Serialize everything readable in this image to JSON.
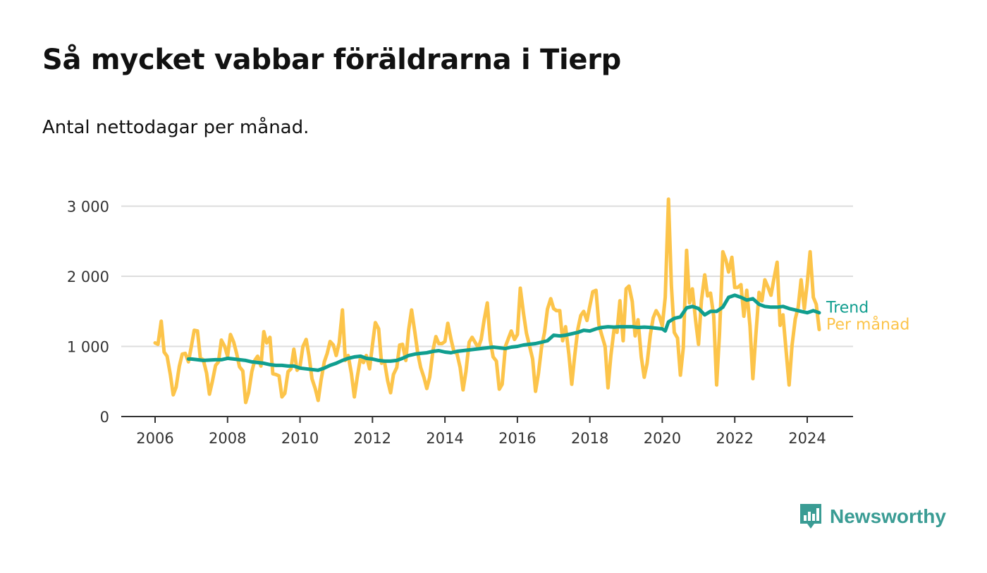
{
  "chart_data": {
    "type": "line",
    "title": "Så mycket vabbar föräldrarna i Tierp",
    "subtitle": "Antal nettodagar per månad.",
    "xlabel": "",
    "ylabel": "",
    "ylim": [
      0,
      3200
    ],
    "y_ticks": [
      0,
      1000,
      2000,
      3000
    ],
    "y_tick_labels": [
      "0",
      "1 000",
      "2 000",
      "3 000"
    ],
    "x_ticks": [
      2006,
      2008,
      2010,
      2012,
      2014,
      2016,
      2018,
      2020,
      2022,
      2024
    ],
    "x_tick_labels": [
      "2006",
      "2008",
      "2010",
      "2012",
      "2014",
      "2016",
      "2018",
      "2020",
      "2022",
      "2024"
    ],
    "xlim": [
      2005,
      2025.3
    ],
    "grid": true,
    "legend": "right-inline",
    "series": [
      {
        "name": "Per månad",
        "color": "#fcc44a",
        "x": [
          2006.0,
          2006.08,
          2006.17,
          2006.25,
          2006.33,
          2006.42,
          2006.5,
          2006.58,
          2006.67,
          2006.75,
          2006.83,
          2006.92,
          2007.0,
          2007.08,
          2007.17,
          2007.25,
          2007.33,
          2007.42,
          2007.5,
          2007.58,
          2007.67,
          2007.75,
          2007.83,
          2007.92,
          2008.0,
          2008.08,
          2008.17,
          2008.25,
          2008.33,
          2008.42,
          2008.5,
          2008.58,
          2008.67,
          2008.75,
          2008.83,
          2008.92,
          2009.0,
          2009.08,
          2009.17,
          2009.25,
          2009.33,
          2009.42,
          2009.5,
          2009.58,
          2009.67,
          2009.75,
          2009.83,
          2009.92,
          2010.0,
          2010.08,
          2010.17,
          2010.25,
          2010.33,
          2010.42,
          2010.5,
          2010.58,
          2010.67,
          2010.75,
          2010.83,
          2010.92,
          2011.0,
          2011.08,
          2011.17,
          2011.25,
          2011.33,
          2011.42,
          2011.5,
          2011.58,
          2011.67,
          2011.75,
          2011.83,
          2011.92,
          2012.0,
          2012.08,
          2012.17,
          2012.25,
          2012.33,
          2012.42,
          2012.5,
          2012.58,
          2012.67,
          2012.75,
          2012.83,
          2012.92,
          2013.0,
          2013.08,
          2013.17,
          2013.25,
          2013.33,
          2013.42,
          2013.5,
          2013.58,
          2013.67,
          2013.75,
          2013.83,
          2013.92,
          2014.0,
          2014.08,
          2014.17,
          2014.25,
          2014.33,
          2014.42,
          2014.5,
          2014.58,
          2014.67,
          2014.75,
          2014.83,
          2014.92,
          2015.0,
          2015.08,
          2015.17,
          2015.25,
          2015.33,
          2015.42,
          2015.5,
          2015.58,
          2015.67,
          2015.75,
          2015.83,
          2015.92,
          2016.0,
          2016.08,
          2016.17,
          2016.25,
          2016.33,
          2016.42,
          2016.5,
          2016.58,
          2016.67,
          2016.75,
          2016.83,
          2016.92,
          2017.0,
          2017.08,
          2017.17,
          2017.25,
          2017.33,
          2017.42,
          2017.5,
          2017.58,
          2017.67,
          2017.75,
          2017.83,
          2017.92,
          2018.0,
          2018.08,
          2018.17,
          2018.25,
          2018.33,
          2018.42,
          2018.5,
          2018.58,
          2018.67,
          2018.75,
          2018.83,
          2018.92,
          2019.0,
          2019.08,
          2019.17,
          2019.25,
          2019.33,
          2019.42,
          2019.5,
          2019.58,
          2019.67,
          2019.75,
          2019.83,
          2019.92,
          2020.0,
          2020.08,
          2020.17,
          2020.25,
          2020.33,
          2020.42,
          2020.5,
          2020.58,
          2020.67,
          2020.75,
          2020.83,
          2020.92,
          2021.0,
          2021.08,
          2021.17,
          2021.25,
          2021.33,
          2021.42,
          2021.5,
          2021.58,
          2021.67,
          2021.75,
          2021.83,
          2021.92,
          2022.0,
          2022.08,
          2022.17,
          2022.25,
          2022.33,
          2022.42,
          2022.5,
          2022.58,
          2022.67,
          2022.75,
          2022.83,
          2022.92,
          2023.0,
          2023.08,
          2023.17,
          2023.25,
          2023.33,
          2023.42,
          2023.5,
          2023.58,
          2023.67,
          2023.75,
          2023.83,
          2023.92,
          2024.0,
          2024.08,
          2024.17,
          2024.25,
          2024.33
        ],
        "values": [
          1050,
          1030,
          1360,
          920,
          860,
          600,
          310,
          420,
          720,
          890,
          900,
          780,
          1000,
          1230,
          1220,
          830,
          810,
          620,
          320,
          500,
          730,
          780,
          1090,
          1000,
          860,
          1170,
          1060,
          900,
          710,
          650,
          200,
          340,
          640,
          800,
          860,
          720,
          1210,
          1050,
          1130,
          610,
          600,
          580,
          280,
          330,
          640,
          680,
          960,
          660,
          720,
          1000,
          1100,
          860,
          540,
          400,
          230,
          520,
          780,
          900,
          1070,
          1020,
          870,
          1050,
          1520,
          800,
          870,
          610,
          280,
          560,
          840,
          770,
          870,
          680,
          1020,
          1340,
          1250,
          760,
          790,
          510,
          340,
          600,
          700,
          1020,
          1030,
          800,
          1240,
          1520,
          1200,
          900,
          700,
          560,
          400,
          560,
          950,
          1140,
          1040,
          1040,
          1070,
          1330,
          1100,
          920,
          900,
          700,
          380,
          640,
          1060,
          1130,
          1060,
          980,
          1100,
          1370,
          1620,
          1090,
          850,
          790,
          390,
          460,
          1000,
          1110,
          1220,
          1100,
          1170,
          1830,
          1470,
          1190,
          1020,
          820,
          360,
          610,
          1000,
          1200,
          1530,
          1680,
          1540,
          1510,
          1510,
          1080,
          1280,
          890,
          460,
          860,
          1250,
          1440,
          1500,
          1370,
          1580,
          1780,
          1800,
          1310,
          1160,
          1000,
          410,
          870,
          1250,
          1200,
          1650,
          1080,
          1820,
          1860,
          1640,
          1150,
          1380,
          850,
          560,
          760,
          1170,
          1410,
          1510,
          1430,
          1290,
          1700,
          3100,
          1870,
          1200,
          1120,
          590,
          980,
          2370,
          1620,
          1820,
          1370,
          1030,
          1650,
          2020,
          1720,
          1760,
          1430,
          450,
          1190,
          2350,
          2240,
          2060,
          2270,
          1840,
          1840,
          1880,
          1430,
          1800,
          1290,
          540,
          1150,
          1770,
          1650,
          1950,
          1840,
          1730,
          1960,
          2200,
          1300,
          1450,
          920,
          450,
          1010,
          1390,
          1560,
          1950,
          1540,
          1900,
          2350,
          1700,
          1600,
          1240
        ]
      },
      {
        "name": "Trend",
        "color": "#109e8f",
        "x": [
          2006.92,
          2007.0,
          2007.17,
          2007.33,
          2007.5,
          2007.67,
          2007.83,
          2008.0,
          2008.17,
          2008.33,
          2008.5,
          2008.67,
          2008.83,
          2009.0,
          2009.17,
          2009.33,
          2009.5,
          2009.67,
          2009.83,
          2010.0,
          2010.17,
          2010.33,
          2010.5,
          2010.67,
          2010.83,
          2011.0,
          2011.17,
          2011.33,
          2011.5,
          2011.67,
          2011.83,
          2012.0,
          2012.17,
          2012.33,
          2012.5,
          2012.67,
          2012.83,
          2013.0,
          2013.17,
          2013.33,
          2013.5,
          2013.67,
          2013.83,
          2014.0,
          2014.17,
          2014.33,
          2014.5,
          2014.67,
          2014.83,
          2015.0,
          2015.17,
          2015.33,
          2015.5,
          2015.67,
          2015.83,
          2016.0,
          2016.17,
          2016.33,
          2016.5,
          2016.67,
          2016.83,
          2017.0,
          2017.17,
          2017.33,
          2017.5,
          2017.67,
          2017.83,
          2018.0,
          2018.17,
          2018.33,
          2018.5,
          2018.67,
          2018.83,
          2019.0,
          2019.17,
          2019.33,
          2019.5,
          2019.67,
          2019.83,
          2020.0,
          2020.08,
          2020.17,
          2020.33,
          2020.5,
          2020.67,
          2020.83,
          2021.0,
          2021.17,
          2021.33,
          2021.5,
          2021.67,
          2021.83,
          2022.0,
          2022.17,
          2022.33,
          2022.5,
          2022.67,
          2022.83,
          2023.0,
          2023.17,
          2023.33,
          2023.5,
          2023.67,
          2023.83,
          2024.0,
          2024.17,
          2024.33
        ],
        "values": [
          820,
          820,
          810,
          800,
          805,
          810,
          810,
          830,
          820,
          810,
          800,
          780,
          770,
          760,
          740,
          730,
          730,
          720,
          720,
          690,
          680,
          670,
          660,
          690,
          730,
          760,
          800,
          830,
          850,
          860,
          830,
          820,
          800,
          790,
          790,
          800,
          830,
          870,
          890,
          900,
          910,
          930,
          940,
          920,
          910,
          930,
          940,
          950,
          960,
          970,
          980,
          990,
          980,
          970,
          990,
          1000,
          1020,
          1030,
          1040,
          1060,
          1080,
          1160,
          1150,
          1160,
          1180,
          1200,
          1230,
          1220,
          1250,
          1270,
          1280,
          1275,
          1280,
          1280,
          1280,
          1270,
          1275,
          1270,
          1260,
          1250,
          1220,
          1350,
          1400,
          1420,
          1550,
          1570,
          1540,
          1450,
          1500,
          1500,
          1560,
          1700,
          1730,
          1700,
          1660,
          1680,
          1600,
          1570,
          1560,
          1560,
          1570,
          1540,
          1520,
          1500,
          1480,
          1510,
          1480
        ]
      }
    ]
  },
  "legend": {
    "trend_label": "Trend",
    "monthly_label": "Per månad"
  },
  "brand": {
    "name": "Newsworthy",
    "color": "#3a9c94",
    "icon": "newsworthy-logo-icon"
  }
}
